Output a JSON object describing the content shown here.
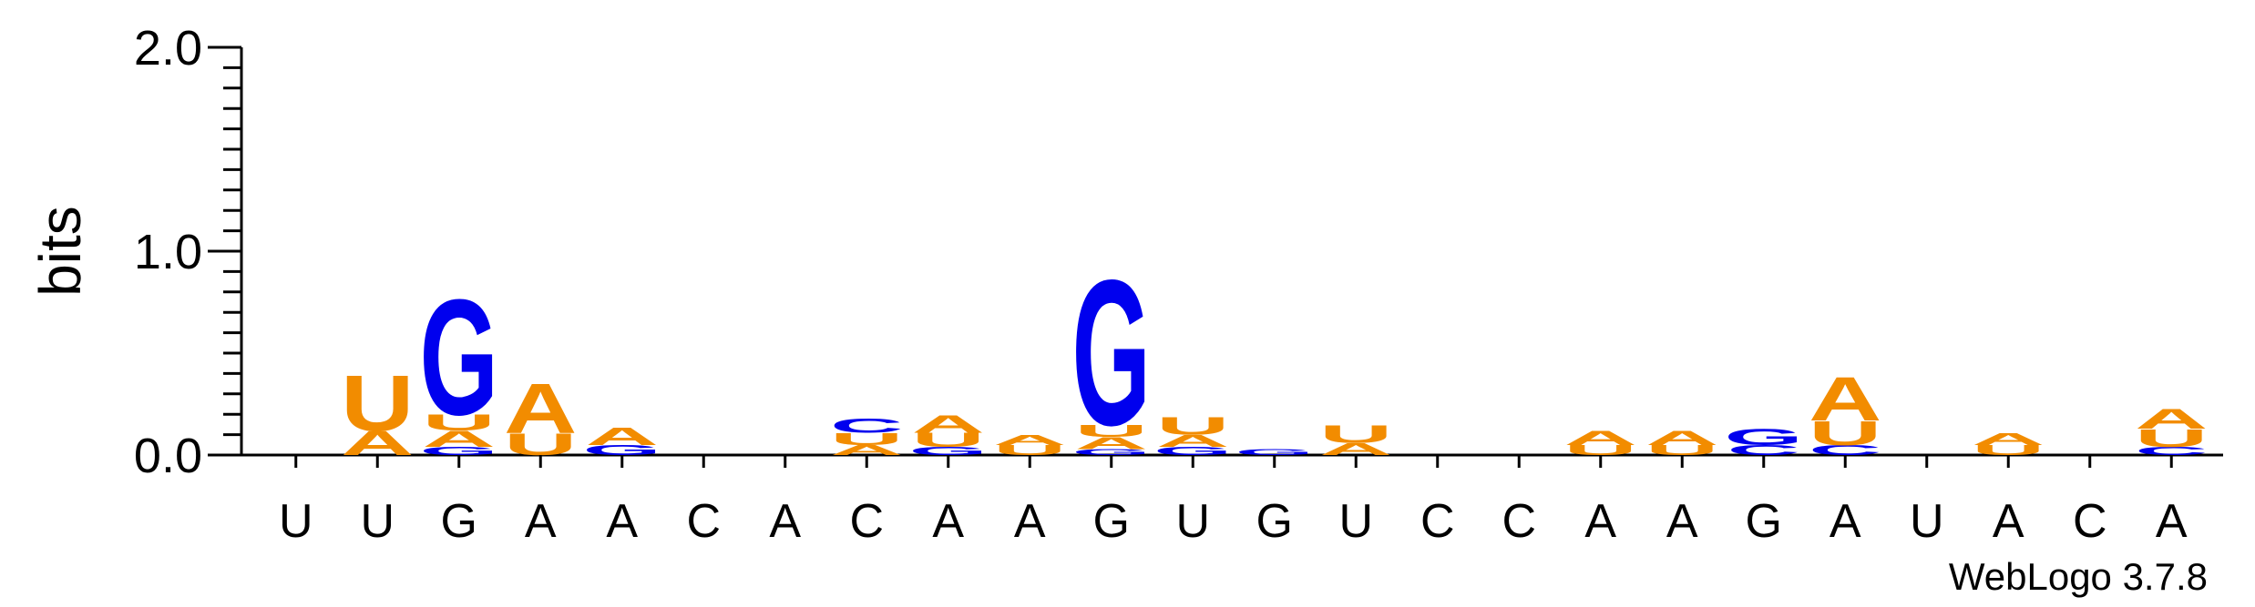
{
  "chart_data": {
    "type": "sequence-logo",
    "ylabel": "bits",
    "ylim": [
      0,
      2
    ],
    "yticks": [
      "0.0",
      "1.0",
      "2.0"
    ],
    "colors": {
      "A": "#f28c00",
      "U": "#f28c00",
      "G": "#0000ee",
      "C": "#0000ee"
    },
    "credit": "WebLogo 3.7.8",
    "positions": [
      {
        "label": "U",
        "letters": []
      },
      {
        "label": "U",
        "letters": [
          [
            "A",
            0.12
          ],
          [
            "U",
            0.28
          ]
        ]
      },
      {
        "label": "G",
        "letters": [
          [
            "G",
            0.04
          ],
          [
            "A",
            0.08
          ],
          [
            "U",
            0.08
          ],
          [
            "G",
            0.58
          ]
        ]
      },
      {
        "label": "A",
        "letters": [
          [
            "U",
            0.11
          ],
          [
            "A",
            0.25
          ]
        ]
      },
      {
        "label": "A",
        "letters": [
          [
            "G",
            0.05
          ],
          [
            "A",
            0.09
          ]
        ]
      },
      {
        "label": "C",
        "letters": []
      },
      {
        "label": "A",
        "letters": []
      },
      {
        "label": "C",
        "letters": [
          [
            "A",
            0.05
          ],
          [
            "U",
            0.06
          ],
          [
            "C",
            0.07
          ]
        ]
      },
      {
        "label": "A",
        "letters": [
          [
            "G",
            0.04
          ],
          [
            "U",
            0.07
          ],
          [
            "A",
            0.09
          ]
        ]
      },
      {
        "label": "A",
        "letters": [
          [
            "U",
            0.05
          ],
          [
            "A",
            0.05
          ]
        ]
      },
      {
        "label": "G",
        "letters": [
          [
            "G",
            0.03
          ],
          [
            "A",
            0.06
          ],
          [
            "U",
            0.06
          ],
          [
            "G",
            0.73
          ]
        ]
      },
      {
        "label": "U",
        "letters": [
          [
            "G",
            0.04
          ],
          [
            "A",
            0.06
          ],
          [
            "U",
            0.09
          ]
        ]
      },
      {
        "label": "G",
        "letters": [
          [
            "G",
            0.03
          ]
        ]
      },
      {
        "label": "U",
        "letters": [
          [
            "A",
            0.06
          ],
          [
            "U",
            0.09
          ]
        ]
      },
      {
        "label": "C",
        "letters": []
      },
      {
        "label": "C",
        "letters": []
      },
      {
        "label": "A",
        "letters": [
          [
            "U",
            0.05
          ],
          [
            "A",
            0.07
          ]
        ]
      },
      {
        "label": "A",
        "letters": [
          [
            "U",
            0.05
          ],
          [
            "A",
            0.07
          ]
        ]
      },
      {
        "label": "G",
        "letters": [
          [
            "C",
            0.05
          ],
          [
            "G",
            0.08
          ]
        ]
      },
      {
        "label": "A",
        "letters": [
          [
            "C",
            0.05
          ],
          [
            "U",
            0.12
          ],
          [
            "A",
            0.22
          ]
        ]
      },
      {
        "label": "U",
        "letters": []
      },
      {
        "label": "A",
        "letters": [
          [
            "U",
            0.05
          ],
          [
            "A",
            0.06
          ]
        ]
      },
      {
        "label": "C",
        "letters": []
      },
      {
        "label": "A",
        "letters": [
          [
            "C",
            0.04
          ],
          [
            "U",
            0.09
          ],
          [
            "A",
            0.1
          ]
        ]
      }
    ]
  }
}
